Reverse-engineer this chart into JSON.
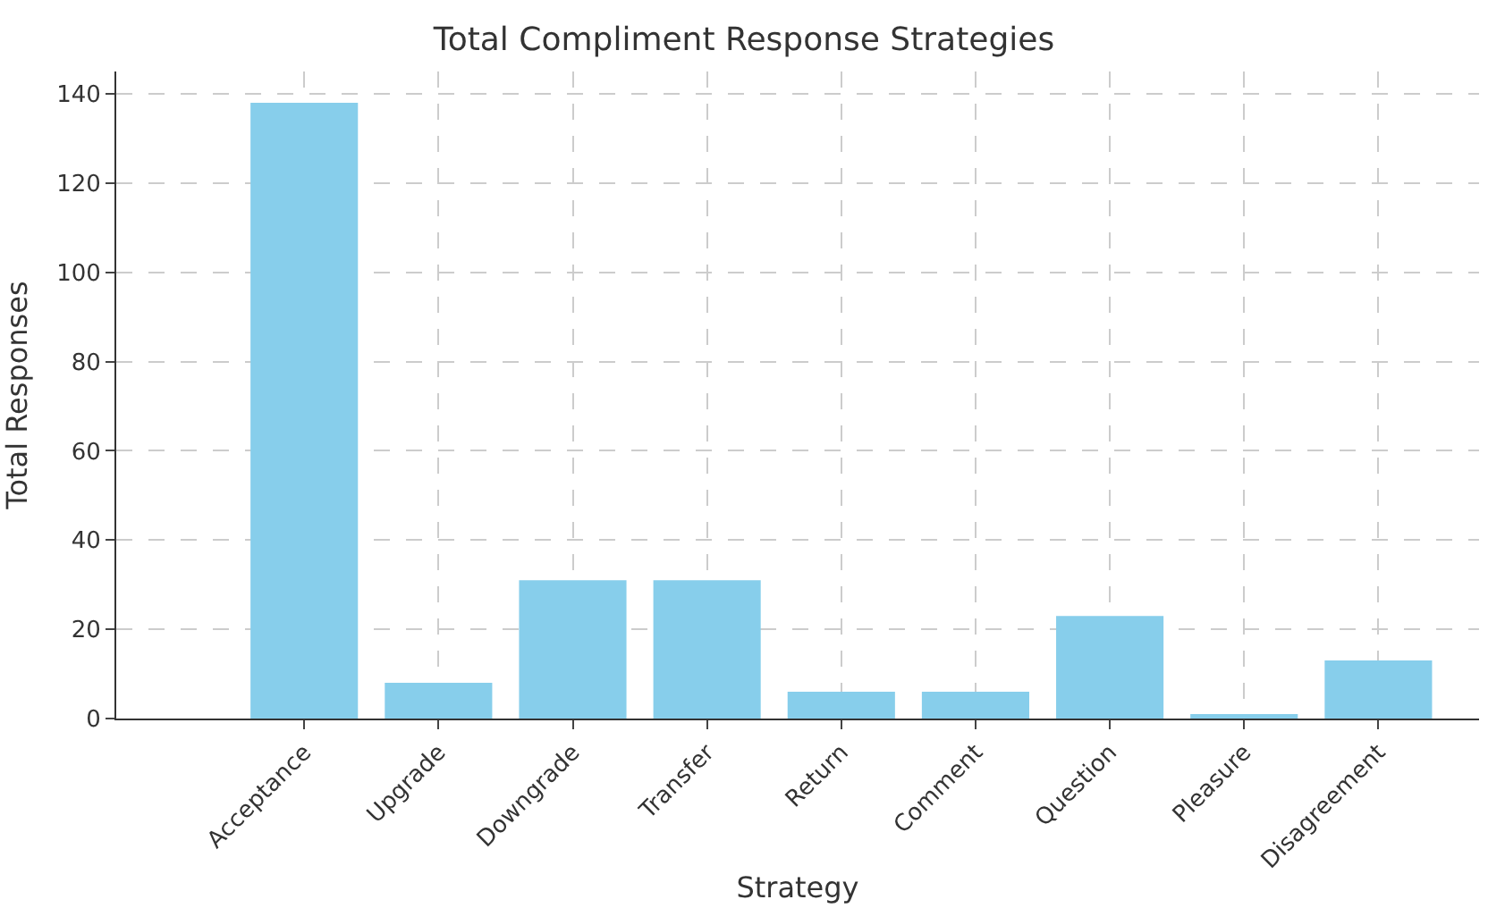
{
  "chart_data": {
    "type": "bar",
    "title": "Total Compliment Response Strategies",
    "xlabel": "Strategy",
    "ylabel": "Total Responses",
    "categories": [
      "Acceptance",
      "Upgrade",
      "Downgrade",
      "Transfer",
      "Return",
      "Comment",
      "Question",
      "Pleasure",
      "Disagreement"
    ],
    "values": [
      138,
      8,
      31,
      31,
      6,
      6,
      23,
      1,
      13
    ],
    "color": "#87ceeb",
    "ylim": [
      0,
      145
    ],
    "yticks": [
      0,
      20,
      40,
      60,
      80,
      100,
      120,
      140
    ],
    "grid": true
  }
}
